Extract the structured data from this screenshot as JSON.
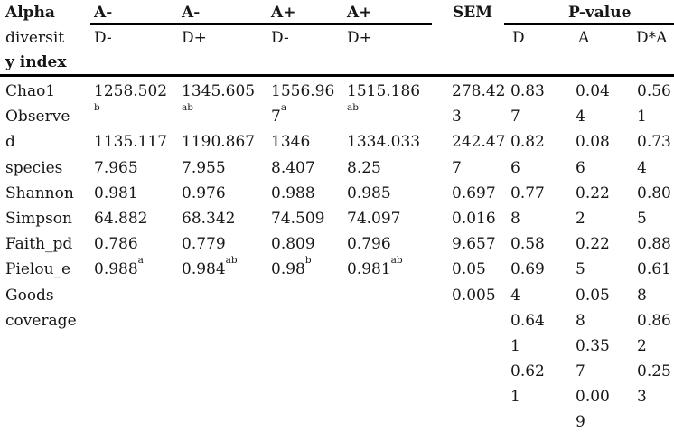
{
  "colors": {
    "background": "#ffffff",
    "text": "#161616",
    "rule": "#000000"
  },
  "header": {
    "index_column_lines": [
      "Alpha",
      "diversit",
      "y index"
    ],
    "index_column_label": "Alpha diversity index",
    "treatment_groups": [
      {
        "antibiotic": "A-",
        "probiotic": "D-"
      },
      {
        "antibiotic": "A-",
        "probiotic": "D+"
      },
      {
        "antibiotic": "A+",
        "probiotic": "D-"
      },
      {
        "antibiotic": "A+",
        "probiotic": "D+"
      }
    ],
    "sem": "SEM",
    "pvalue": "P-value",
    "pvalue_sub": [
      "D",
      "A",
      "D*A"
    ]
  },
  "body": {
    "columns": [
      {
        "name": "index",
        "lines": [
          "Chao1",
          "Observe",
          "d",
          "species",
          "Shannon",
          "Simpson",
          "Faith_pd",
          "Pielou_e",
          "Goods",
          "coverage"
        ]
      },
      {
        "name": "A-D-",
        "lines": [
          "1258.502",
          "^b",
          "1135.117",
          "7.965",
          "0.981",
          "64.882",
          "0.786",
          "0.988^a"
        ]
      },
      {
        "name": "A-D+",
        "lines": [
          "1345.605",
          "^ab",
          "1190.867",
          "7.955",
          "0.976",
          "68.342",
          "0.779",
          "0.984^ab"
        ]
      },
      {
        "name": "A+D-",
        "lines": [
          "1556.96",
          "7^a",
          "1346",
          "8.407",
          "0.988",
          "74.509",
          "0.809",
          "0.98^b"
        ]
      },
      {
        "name": "A+D+",
        "lines": [
          "1515.186",
          "^ab",
          "1334.033",
          "8.25",
          "0.985",
          "74.097",
          "0.796",
          "0.981^ab"
        ]
      },
      {
        "name": "SEM",
        "lines": [
          "278.42",
          "3",
          "242.47",
          "7",
          "0.697",
          "0.016",
          "9.657",
          "0.05",
          "0.005"
        ]
      },
      {
        "name": "P-D",
        "lines": [
          "0.83",
          "7",
          "0.82",
          "6",
          "0.77",
          "8",
          "0.58",
          "0.69",
          "4",
          "0.64",
          "1",
          "0.62",
          "1"
        ]
      },
      {
        "name": "P-A",
        "lines": [
          "0.04",
          "4",
          "0.08",
          "6",
          "0.22",
          "2",
          "0.22",
          "5",
          "0.05",
          "8",
          "0.35",
          "7",
          "0.00",
          "9"
        ]
      },
      {
        "name": "P-DxA",
        "lines": [
          "0.56",
          "1",
          "0.73",
          "4",
          "0.80",
          "5",
          "0.88",
          "0.61",
          "8",
          "0.86",
          "2",
          "0.25",
          "3"
        ]
      }
    ]
  },
  "table_semantic": {
    "row_header": "Alpha diversity index",
    "columns": [
      "A- D-",
      "A- D+",
      "A+ D-",
      "A+ D+",
      "SEM",
      "P-value D",
      "P-value A",
      "P-value D*A"
    ],
    "rows": [
      {
        "index": "Chao1",
        "values": [
          "1258.502^b",
          "1345.605^ab",
          "1556.967^a",
          "1515.186^ab"
        ],
        "sem": "278.423",
        "p": [
          "0.837",
          "0.044",
          "0.561"
        ]
      },
      {
        "index": "Observed species",
        "values": [
          "1135.117",
          "1190.867",
          "1346",
          "1334.033"
        ],
        "sem": "242.477",
        "p": [
          "0.826",
          "0.086",
          "0.734"
        ]
      },
      {
        "index": "Shannon",
        "values": [
          "7.965",
          "7.955",
          "8.407",
          "8.25"
        ],
        "sem": "0.697",
        "p": [
          "0.778",
          "0.222",
          "0.805"
        ]
      },
      {
        "index": "Simpson",
        "values": [
          "0.981",
          "0.976",
          "0.988",
          "0.985"
        ],
        "sem": "0.016",
        "p": [
          "0.58",
          "0.225",
          "0.88"
        ]
      },
      {
        "index": "Faith_pd",
        "values": [
          "64.882",
          "68.342",
          "74.509",
          "74.097"
        ],
        "sem": "9.657",
        "p": [
          "0.694",
          "0.058",
          "0.618"
        ]
      },
      {
        "index": "Pielou_e",
        "values": [
          "0.786",
          "0.779",
          "0.809",
          "0.796"
        ],
        "sem": "0.05",
        "p": [
          "0.641",
          "0.357",
          "0.862"
        ]
      },
      {
        "index": "Goods coverage",
        "values": [
          "0.988^a",
          "0.984^ab",
          "0.98^b",
          "0.981^ab"
        ],
        "sem": "0.005",
        "p": [
          "0.621",
          "0.009",
          "0.253"
        ]
      }
    ]
  }
}
